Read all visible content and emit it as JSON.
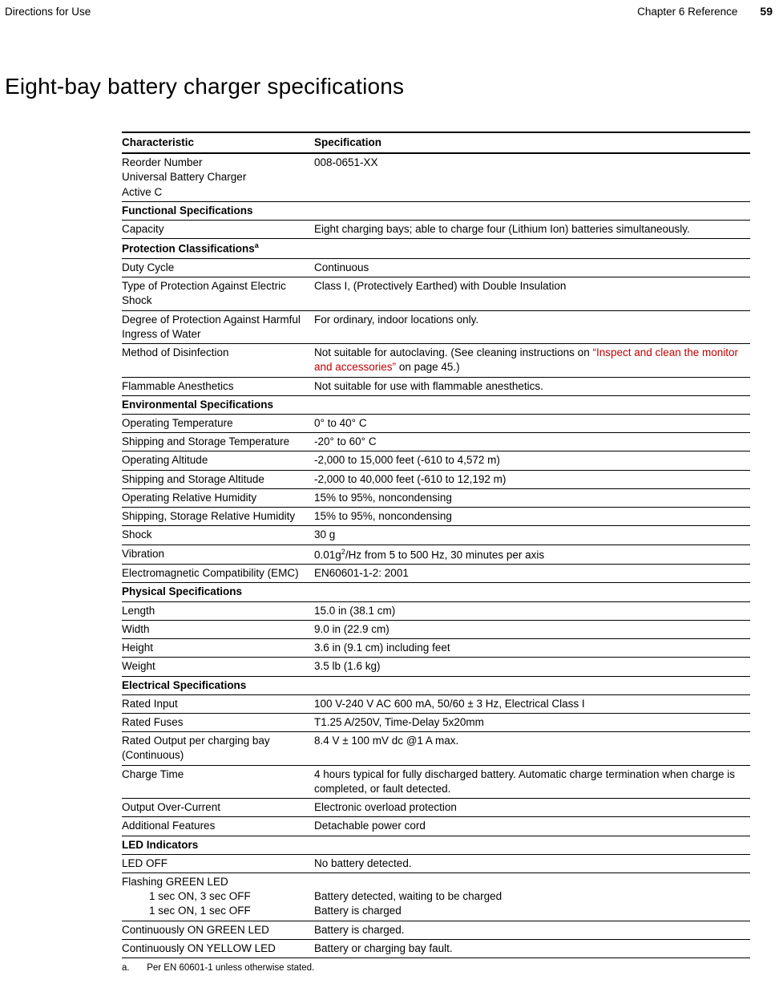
{
  "header": {
    "left": "Directions for Use",
    "chapter": "Chapter 6   Reference",
    "page": "59"
  },
  "title": "Eight-bay battery charger specifications",
  "columns": {
    "char": "Characteristic",
    "spec": "Specification"
  },
  "rows": [
    {
      "type": "data",
      "char": "Reorder Number\nUniversal Battery Charger\nActive C",
      "spec": "008-0651-XX"
    },
    {
      "type": "section",
      "label": "Functional Specifications"
    },
    {
      "type": "data",
      "char": "Capacity",
      "spec": "Eight charging bays; able to charge four (Lithium Ion) batteries simultaneously."
    },
    {
      "type": "section",
      "label": "Protection Classifications",
      "sup": "a"
    },
    {
      "type": "data",
      "char": "Duty Cycle",
      "spec": "Continuous"
    },
    {
      "type": "data",
      "char": "Type of Protection Against Electric Shock",
      "spec": "Class I, (Protectively Earthed) with Double Insulation"
    },
    {
      "type": "data",
      "char": "Degree of Protection Against Harmful Ingress of Water",
      "spec": "For ordinary, indoor locations only."
    },
    {
      "type": "data",
      "char": "Method of Disinfection",
      "spec_pre": "Not suitable for autoclaving. (See cleaning instructions on ",
      "spec_link": "“Inspect and clean the monitor and accessories”",
      "spec_post": " on page 45.)"
    },
    {
      "type": "data",
      "char": "Flammable Anesthetics",
      "spec": "Not suitable for use with flammable anesthetics."
    },
    {
      "type": "section",
      "label": "Environmental Specifications"
    },
    {
      "type": "data",
      "char": "Operating Temperature",
      "spec": "0° to 40° C"
    },
    {
      "type": "data",
      "char": "Shipping and Storage Temperature",
      "spec": "-20° to 60° C"
    },
    {
      "type": "data",
      "char": "Operating Altitude",
      "spec": "-2,000 to 15,000 feet (-610 to 4,572 m)"
    },
    {
      "type": "data",
      "char": "Shipping and Storage Altitude",
      "spec": "-2,000 to 40,000 feet (-610 to 12,192 m)"
    },
    {
      "type": "data",
      "char": "Operating Relative Humidity",
      "spec": "15% to 95%, noncondensing"
    },
    {
      "type": "data",
      "char": "Shipping, Storage Relative Humidity",
      "spec": "15% to 95%, noncondensing"
    },
    {
      "type": "data",
      "char": "Shock",
      "spec": "30 g"
    },
    {
      "type": "data",
      "char": "Vibration",
      "spec_pre": "0.01g",
      "spec_sup": "2",
      "spec_post": "/Hz from 5 to 500 Hz, 30 minutes per axis"
    },
    {
      "type": "data",
      "char": "Electromagnetic Compatibility (EMC)",
      "spec": "EN60601-1-2: 2001"
    },
    {
      "type": "section",
      "label": "Physical Specifications"
    },
    {
      "type": "data",
      "char": "Length",
      "spec": "15.0 in (38.1 cm)"
    },
    {
      "type": "data",
      "char": "Width",
      "spec": "9.0 in (22.9 cm)"
    },
    {
      "type": "data",
      "char": "Height",
      "spec": "3.6 in (9.1 cm) including feet"
    },
    {
      "type": "data",
      "char": "Weight",
      "spec": "3.5 lb (1.6 kg)"
    },
    {
      "type": "section",
      "label": "Electrical Specifications"
    },
    {
      "type": "data",
      "char": "Rated Input",
      "spec": "100 V-240 V AC 600 mA, 50/60 ± 3 Hz, Electrical Class I"
    },
    {
      "type": "data",
      "char": "Rated Fuses",
      "spec": "T1.25 A/250V, Time-Delay 5x20mm"
    },
    {
      "type": "data",
      "char": "Rated Output per charging bay (Continuous)",
      "spec": "8.4 V ± 100 mV dc @1 A max."
    },
    {
      "type": "data",
      "char": "Charge Time",
      "spec": "4 hours typical for fully discharged battery. Automatic charge termination when charge is completed, or fault detected."
    },
    {
      "type": "data",
      "char": "Output Over-Current",
      "spec": "Electronic overload protection"
    },
    {
      "type": "data",
      "char": "Additional Features",
      "spec": "Detachable power cord"
    },
    {
      "type": "section",
      "label": "LED Indicators"
    },
    {
      "type": "data",
      "char": "LED OFF",
      "spec": "No battery detected."
    },
    {
      "type": "led",
      "line1_char": "Flashing GREEN LED",
      "line2_char": "1 sec ON, 3 sec OFF",
      "line2_spec": "Battery detected, waiting to be charged",
      "line3_char": "1 sec ON, 1 sec OFF",
      "line3_spec": "Battery is charged"
    },
    {
      "type": "data",
      "char": "Continuously ON GREEN LED",
      "spec": "Battery is charged."
    },
    {
      "type": "data",
      "char": "Continuously ON YELLOW LED",
      "spec": "Battery or charging bay fault."
    }
  ],
  "footnote": {
    "mark": "a.",
    "text": "Per EN 60601-1 unless otherwise stated."
  },
  "link_color": "#c00000"
}
